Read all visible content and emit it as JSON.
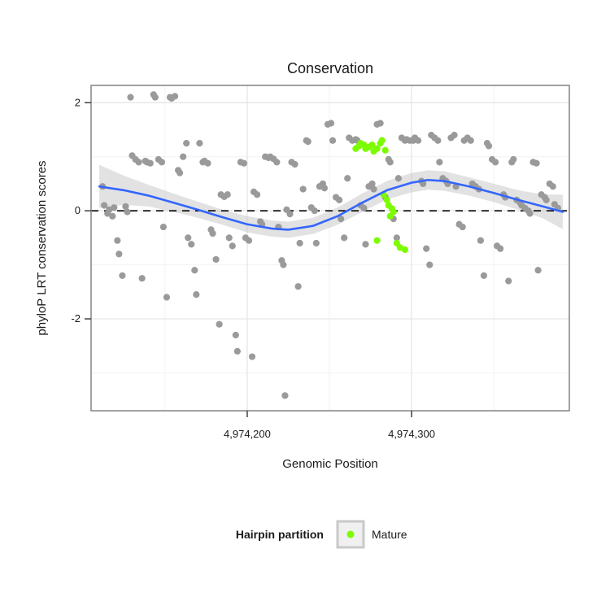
{
  "chart_data": {
    "type": "scatter",
    "title": "Conservation",
    "xlabel": "Genomic Position",
    "ylabel": "phyloP LRT conservation scores",
    "xlim": [
      4974105,
      4974396
    ],
    "ylim": [
      -3.7,
      2.32
    ],
    "grid": true,
    "x_ticks": [
      {
        "value": 4974200,
        "label": "4,974,200"
      },
      {
        "value": 4974300,
        "label": "4,974,300"
      }
    ],
    "y_ticks": [
      {
        "value": 2,
        "label": "2"
      },
      {
        "value": 0,
        "label": "0"
      },
      {
        "value": -2,
        "label": "-2"
      }
    ],
    "x_minor": [
      4974150,
      4974250,
      4974350
    ],
    "y_minor": [
      1,
      -1,
      -3
    ],
    "hline": 0,
    "legend": {
      "title": "Hairpin partition",
      "position": "bottom",
      "entries": [
        {
          "label": "Mature",
          "color": "#7CFC00"
        }
      ]
    },
    "style": {
      "panel_fill": "#FFFFFF",
      "panel_border": "#8A8A8A",
      "grid_major": "#E3E3E3",
      "grid_minor": "#F2F2F2",
      "point_color": "#9A9A9A",
      "mature_color": "#7CFC00",
      "smooth_color": "#3366FF",
      "band_color": "#BFBFBF",
      "band_opacity": 0.45,
      "hline_color": "#000000",
      "tick_color": "#333333",
      "legend_key_fill": "#F0F0F0",
      "legend_key_border": "#C9C9C9"
    },
    "series": [
      {
        "name": "background",
        "color": "#9A9A9A",
        "points": [
          [
            4974112,
            0.45
          ],
          [
            4974113,
            0.1
          ],
          [
            4974115,
            -0.05
          ],
          [
            4974116,
            0.02
          ],
          [
            4974118,
            -0.1
          ],
          [
            4974119,
            0.06
          ],
          [
            4974121,
            -0.55
          ],
          [
            4974122,
            -0.8
          ],
          [
            4974124,
            -1.2
          ],
          [
            4974126,
            0.08
          ],
          [
            4974127,
            -0.02
          ],
          [
            4974129,
            2.1
          ],
          [
            4974130,
            1.02
          ],
          [
            4974132,
            0.95
          ],
          [
            4974134,
            0.9
          ],
          [
            4974136,
            -1.25
          ],
          [
            4974138,
            0.92
          ],
          [
            4974139,
            0.9
          ],
          [
            4974141,
            0.88
          ],
          [
            4974143,
            2.15
          ],
          [
            4974144,
            2.1
          ],
          [
            4974146,
            0.95
          ],
          [
            4974148,
            0.9
          ],
          [
            4974149,
            -0.3
          ],
          [
            4974151,
            -1.6
          ],
          [
            4974153,
            2.1
          ],
          [
            4974154,
            2.08
          ],
          [
            4974156,
            2.12
          ],
          [
            4974158,
            0.75
          ],
          [
            4974159,
            0.7
          ],
          [
            4974161,
            1.0
          ],
          [
            4974163,
            1.25
          ],
          [
            4974164,
            -0.5
          ],
          [
            4974166,
            -0.62
          ],
          [
            4974168,
            -1.1
          ],
          [
            4974169,
            -1.55
          ],
          [
            4974171,
            1.25
          ],
          [
            4974173,
            0.9
          ],
          [
            4974174,
            0.92
          ],
          [
            4974176,
            0.88
          ],
          [
            4974178,
            -0.35
          ],
          [
            4974179,
            -0.42
          ],
          [
            4974181,
            -0.9
          ],
          [
            4974183,
            -2.1
          ],
          [
            4974184,
            0.3
          ],
          [
            4974186,
            0.26
          ],
          [
            4974188,
            0.3
          ],
          [
            4974189,
            -0.5
          ],
          [
            4974191,
            -0.65
          ],
          [
            4974193,
            -2.3
          ],
          [
            4974194,
            -2.6
          ],
          [
            4974196,
            0.9
          ],
          [
            4974198,
            0.88
          ],
          [
            4974199,
            -0.5
          ],
          [
            4974201,
            -0.55
          ],
          [
            4974203,
            -2.7
          ],
          [
            4974204,
            0.35
          ],
          [
            4974206,
            0.3
          ],
          [
            4974208,
            -0.2
          ],
          [
            4974209,
            -0.25
          ],
          [
            4974211,
            1.0
          ],
          [
            4974213,
            0.98
          ],
          [
            4974214,
            1.0
          ],
          [
            4974216,
            0.96
          ],
          [
            4974218,
            0.9
          ],
          [
            4974219,
            -0.3
          ],
          [
            4974221,
            -0.92
          ],
          [
            4974222,
            -1.0
          ],
          [
            4974223,
            -3.42
          ],
          [
            4974224,
            0.02
          ],
          [
            4974226,
            -0.06
          ],
          [
            4974227,
            0.9
          ],
          [
            4974229,
            0.86
          ],
          [
            4974231,
            -1.4
          ],
          [
            4974232,
            -0.6
          ],
          [
            4974234,
            0.4
          ],
          [
            4974236,
            1.3
          ],
          [
            4974237,
            1.28
          ],
          [
            4974239,
            0.06
          ],
          [
            4974241,
            0.0
          ],
          [
            4974242,
            -0.6
          ],
          [
            4974244,
            0.45
          ],
          [
            4974246,
            0.5
          ],
          [
            4974247,
            0.42
          ],
          [
            4974249,
            1.6
          ],
          [
            4974251,
            1.62
          ],
          [
            4974252,
            1.3
          ],
          [
            4974254,
            0.25
          ],
          [
            4974256,
            0.2
          ],
          [
            4974257,
            -0.15
          ],
          [
            4974259,
            -0.5
          ],
          [
            4974261,
            0.6
          ],
          [
            4974262,
            1.35
          ],
          [
            4974264,
            1.3
          ],
          [
            4974266,
            1.32
          ],
          [
            4974267,
            1.3
          ],
          [
            4974269,
            0.1
          ],
          [
            4974271,
            0.05
          ],
          [
            4974272,
            -0.62
          ],
          [
            4974274,
            0.45
          ],
          [
            4974276,
            0.5
          ],
          [
            4974277,
            0.4
          ],
          [
            4974279,
            1.6
          ],
          [
            4974281,
            1.62
          ],
          [
            4974282,
            1.3
          ],
          [
            4974284,
            0.25
          ],
          [
            4974286,
            0.95
          ],
          [
            4974287,
            0.9
          ],
          [
            4974289,
            -0.15
          ],
          [
            4974291,
            -0.5
          ],
          [
            4974292,
            0.6
          ],
          [
            4974294,
            1.35
          ],
          [
            4974296,
            1.3
          ],
          [
            4974297,
            1.32
          ],
          [
            4974299,
            1.3
          ],
          [
            4974301,
            1.3
          ],
          [
            4974302,
            1.35
          ],
          [
            4974304,
            1.3
          ],
          [
            4974306,
            0.55
          ],
          [
            4974307,
            0.5
          ],
          [
            4974309,
            -0.7
          ],
          [
            4974311,
            -1.0
          ],
          [
            4974312,
            1.4
          ],
          [
            4974314,
            1.35
          ],
          [
            4974316,
            1.3
          ],
          [
            4974317,
            0.9
          ],
          [
            4974319,
            0.6
          ],
          [
            4974321,
            0.55
          ],
          [
            4974322,
            0.5
          ],
          [
            4974324,
            1.35
          ],
          [
            4974326,
            1.4
          ],
          [
            4974327,
            0.45
          ],
          [
            4974329,
            -0.25
          ],
          [
            4974331,
            -0.3
          ],
          [
            4974332,
            1.3
          ],
          [
            4974334,
            1.35
          ],
          [
            4974336,
            1.3
          ],
          [
            4974337,
            0.5
          ],
          [
            4974339,
            0.45
          ],
          [
            4974341,
            0.4
          ],
          [
            4974342,
            -0.55
          ],
          [
            4974344,
            -1.2
          ],
          [
            4974346,
            1.25
          ],
          [
            4974347,
            1.2
          ],
          [
            4974349,
            0.95
          ],
          [
            4974351,
            0.9
          ],
          [
            4974352,
            -0.65
          ],
          [
            4974354,
            -0.7
          ],
          [
            4974356,
            0.3
          ],
          [
            4974357,
            0.25
          ],
          [
            4974359,
            -1.3
          ],
          [
            4974361,
            0.9
          ],
          [
            4974362,
            0.95
          ],
          [
            4974364,
            0.2
          ],
          [
            4974366,
            0.15
          ],
          [
            4974367,
            0.1
          ],
          [
            4974369,
            0.05
          ],
          [
            4974371,
            0.0
          ],
          [
            4974372,
            -0.05
          ],
          [
            4974374,
            0.9
          ],
          [
            4974376,
            0.88
          ],
          [
            4974377,
            -1.1
          ],
          [
            4974379,
            0.3
          ],
          [
            4974381,
            0.25
          ],
          [
            4974382,
            0.2
          ],
          [
            4974384,
            0.5
          ],
          [
            4974386,
            0.45
          ],
          [
            4974387,
            0.12
          ],
          [
            4974389,
            0.05
          ]
        ]
      },
      {
        "name": "Mature",
        "color": "#7CFC00",
        "points": [
          [
            4974266,
            1.15
          ],
          [
            4974268,
            1.2
          ],
          [
            4974269,
            1.25
          ],
          [
            4974271,
            1.22
          ],
          [
            4974272,
            1.15
          ],
          [
            4974274,
            1.18
          ],
          [
            4974276,
            1.22
          ],
          [
            4974277,
            1.1
          ],
          [
            4974279,
            1.15
          ],
          [
            4974281,
            1.25
          ],
          [
            4974282,
            1.3
          ],
          [
            4974284,
            1.12
          ],
          [
            4974283,
            0.3
          ],
          [
            4974285,
            0.2
          ],
          [
            4974286,
            0.1
          ],
          [
            4974288,
            0.04
          ],
          [
            4974289,
            -0.02
          ],
          [
            4974287,
            -0.1
          ],
          [
            4974279,
            -0.55
          ],
          [
            4974291,
            -0.6
          ],
          [
            4974293,
            -0.68
          ],
          [
            4974296,
            -0.72
          ]
        ]
      }
    ],
    "smooth": {
      "line": [
        [
          4974110,
          0.45
        ],
        [
          4974125,
          0.38
        ],
        [
          4974140,
          0.28
        ],
        [
          4974155,
          0.15
        ],
        [
          4974170,
          0.02
        ],
        [
          4974185,
          -0.12
        ],
        [
          4974200,
          -0.25
        ],
        [
          4974215,
          -0.33
        ],
        [
          4974225,
          -0.35
        ],
        [
          4974240,
          -0.28
        ],
        [
          4974255,
          -0.1
        ],
        [
          4974270,
          0.15
        ],
        [
          4974285,
          0.38
        ],
        [
          4974300,
          0.52
        ],
        [
          4974310,
          0.57
        ],
        [
          4974320,
          0.55
        ],
        [
          4974335,
          0.45
        ],
        [
          4974350,
          0.33
        ],
        [
          4974365,
          0.2
        ],
        [
          4974380,
          0.08
        ],
        [
          4974392,
          -0.02
        ]
      ],
      "band_upper": [
        [
          4974110,
          0.85
        ],
        [
          4974125,
          0.65
        ],
        [
          4974140,
          0.48
        ],
        [
          4974155,
          0.32
        ],
        [
          4974170,
          0.17
        ],
        [
          4974185,
          0.02
        ],
        [
          4974200,
          -0.1
        ],
        [
          4974215,
          -0.18
        ],
        [
          4974225,
          -0.2
        ],
        [
          4974240,
          -0.13
        ],
        [
          4974255,
          0.06
        ],
        [
          4974270,
          0.32
        ],
        [
          4974285,
          0.55
        ],
        [
          4974300,
          0.7
        ],
        [
          4974310,
          0.75
        ],
        [
          4974320,
          0.73
        ],
        [
          4974335,
          0.62
        ],
        [
          4974350,
          0.5
        ],
        [
          4974365,
          0.38
        ],
        [
          4974380,
          0.3
        ],
        [
          4974392,
          0.3
        ]
      ],
      "band_lower": [
        [
          4974110,
          0.05
        ],
        [
          4974125,
          0.11
        ],
        [
          4974140,
          0.08
        ],
        [
          4974155,
          -0.02
        ],
        [
          4974170,
          -0.13
        ],
        [
          4974185,
          -0.26
        ],
        [
          4974200,
          -0.4
        ],
        [
          4974215,
          -0.48
        ],
        [
          4974225,
          -0.5
        ],
        [
          4974240,
          -0.43
        ],
        [
          4974255,
          -0.26
        ],
        [
          4974270,
          -0.02
        ],
        [
          4974285,
          0.21
        ],
        [
          4974300,
          0.34
        ],
        [
          4974310,
          0.39
        ],
        [
          4974320,
          0.37
        ],
        [
          4974335,
          0.28
        ],
        [
          4974350,
          0.16
        ],
        [
          4974365,
          0.02
        ],
        [
          4974380,
          -0.14
        ],
        [
          4974392,
          -0.34
        ]
      ]
    }
  }
}
